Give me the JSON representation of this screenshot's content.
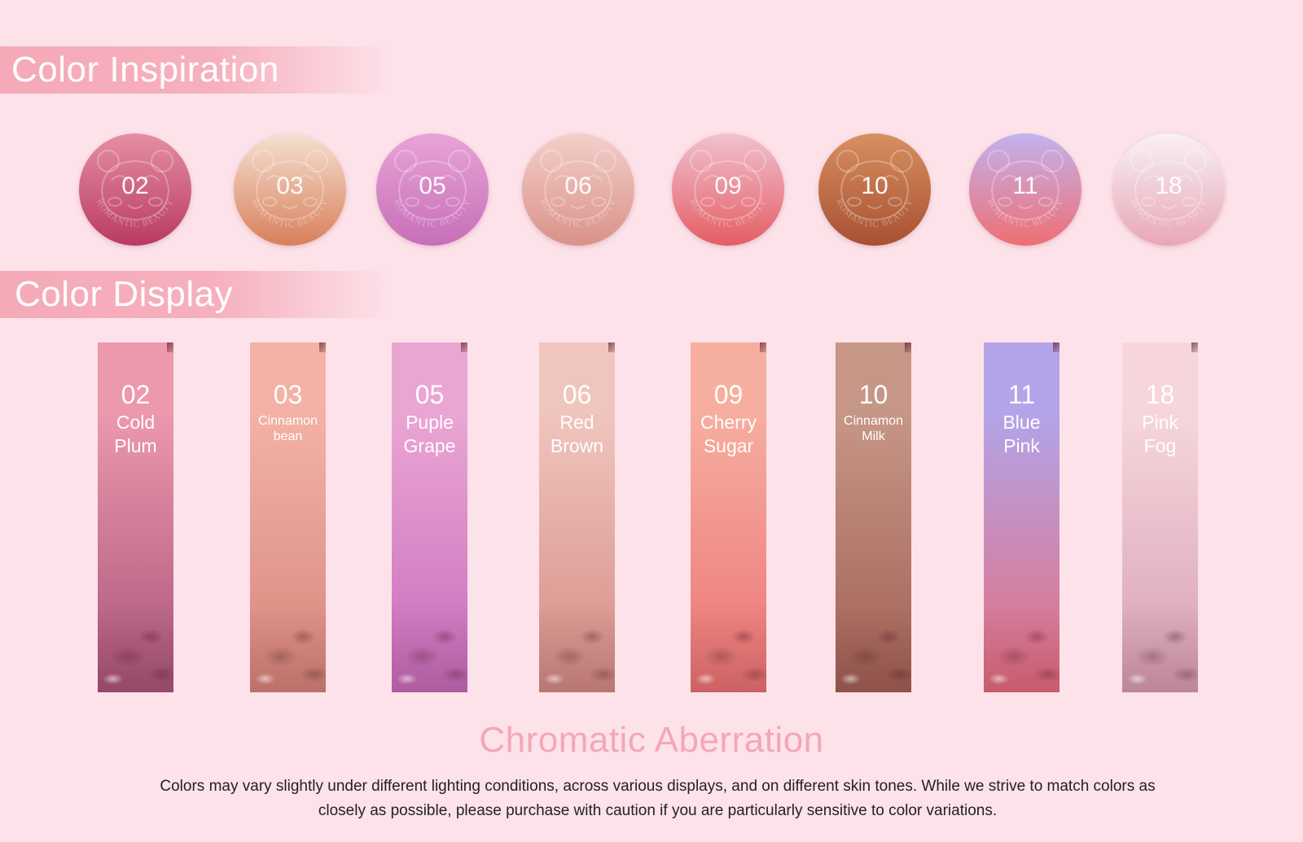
{
  "sections": {
    "inspiration_title": "Color Inspiration",
    "display_title": "Color Display"
  },
  "shades": [
    {
      "code": "02",
      "name": "Cold\nPlum",
      "circle_top": "#e58fa3",
      "circle_bottom": "#b93a63",
      "swatch_top": "#ec98ad",
      "swatch_bottom": "#a9547a"
    },
    {
      "code": "03",
      "name": "Cinnamon\nbean",
      "circle_top": "#f6e0d2",
      "circle_bottom": "#d7805a",
      "swatch_top": "#f3b2a5",
      "swatch_bottom": "#d7867c"
    },
    {
      "code": "05",
      "name": "Puple\nGrape",
      "circle_top": "#e8a4d6",
      "circle_bottom": "#c66fb8",
      "swatch_top": "#eaa6d3",
      "swatch_bottom": "#c76cbd"
    },
    {
      "code": "06",
      "name": "Red\nBrown",
      "circle_top": "#f4cfca",
      "circle_bottom": "#d99289",
      "swatch_top": "#f0c5be",
      "swatch_bottom": "#d48d86"
    },
    {
      "code": "09",
      "name": "Cherry\nSugar",
      "circle_top": "#f0c2d0",
      "circle_bottom": "#e55d63",
      "swatch_top": "#f6ae9f",
      "swatch_bottom": "#ec7474"
    },
    {
      "code": "10",
      "name": "Cinnamon\nMilk",
      "circle_top": "#d89060",
      "circle_bottom": "#a85033",
      "swatch_top": "#c69686",
      "swatch_bottom": "#a16055"
    },
    {
      "code": "11",
      "name": "Blue\nPink",
      "circle_top": "#c3b2ef",
      "circle_bottom": "#ee6f72",
      "swatch_top": "#b3a4e9",
      "swatch_bottom": "#e56d7d"
    },
    {
      "code": "18",
      "name": "Pink\nFog",
      "circle_top": "#f8f1f6",
      "circle_bottom": "#e8a7b6",
      "swatch_top": "#f6d6dc",
      "swatch_bottom": "#d7a0b4"
    }
  ],
  "embossed_text": "ROMANTIC BEAUTY",
  "chromatic": {
    "title": "Chromatic Aberration",
    "body": "Colors may vary slightly under different lighting conditions, across various displays, and on different skin tones. While we strive to match colors as closely as possible, please purchase with caution if you are particularly sensitive to color variations."
  }
}
